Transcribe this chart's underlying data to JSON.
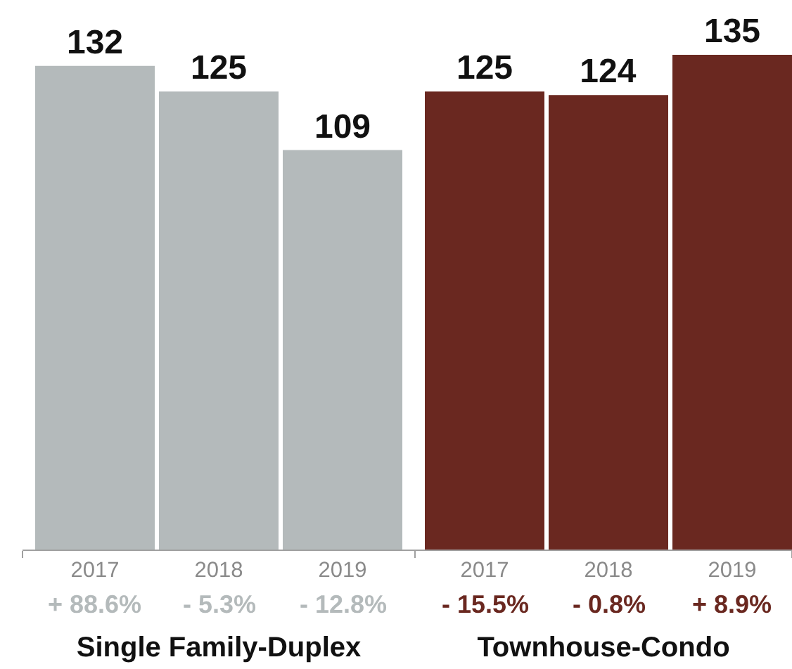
{
  "chart_data": [
    {
      "type": "bar",
      "title": "Single Family-Duplex",
      "categories": [
        "2017",
        "2018",
        "2019"
      ],
      "values": [
        132,
        125,
        109
      ],
      "color": "#b4babb",
      "data_labels": true,
      "annotations": [
        "+ 88.6%",
        "- 5.3%",
        "- 12.8%"
      ]
    },
    {
      "type": "bar",
      "title": "Townhouse-Condo",
      "categories": [
        "2017",
        "2018",
        "2019"
      ],
      "values": [
        125,
        124,
        135
      ],
      "color": "#6a2820",
      "data_labels": true,
      "annotations": [
        "- 15.5%",
        "- 0.8%",
        "+ 8.9%"
      ]
    }
  ]
}
